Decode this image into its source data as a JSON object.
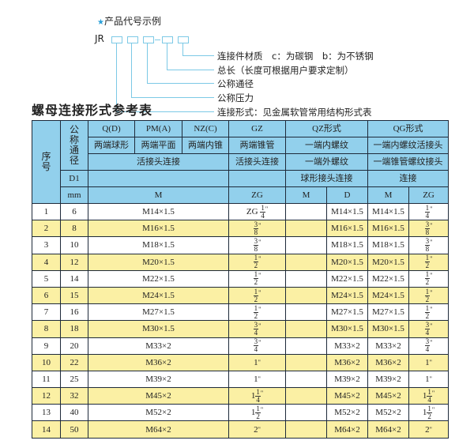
{
  "legend": {
    "star_icon": "star",
    "heading": "产品代号示例",
    "code_prefix": "JR",
    "dash": "-",
    "labels": [
      "连接件材质　c：为碳钢　b：为不锈钢",
      "总长（长度可根据用户要求定制）",
      "公称通径",
      "公称压力",
      "连接形式：见金属软管常用结构形式表"
    ]
  },
  "title": "螺母连接形式参考表",
  "colors": {
    "header": "#92d0ec",
    "stripe": "#fbf0a4",
    "line": "#7cc9e6",
    "star": "#2aa0d8"
  },
  "header": {
    "seq": "序号",
    "dn": "公称通径",
    "qd": "Q(D)",
    "pm": "PM(A)",
    "nz": "NZ(C)",
    "gz": "GZ",
    "qz": "QZ形式",
    "qg": "QG形式",
    "qd2": "两端球形",
    "pm2": "两端平面",
    "nz2": "两端内锥",
    "gz2": "两端锥管",
    "qz2": "一端内螺纹",
    "qg2": "一端内螺纹活接头",
    "hjt": "活接头连接",
    "gz3": "活接头连接",
    "qz3": "一端外螺纹",
    "qg3": "一端锥管螺纹接头",
    "d1": "D1",
    "qz4": "球形接头连接",
    "qg4": "连接",
    "mm": "mm",
    "m": "M",
    "zg": "ZG",
    "qzm": "M",
    "qzd": "D",
    "qgm": "M",
    "qgzg": "ZG"
  },
  "rows": [
    {
      "no": "1",
      "dn": "6",
      "m": "M14×1.5",
      "zg": {
        "pre": "ZG",
        "w": "",
        "n": "1",
        "d": "4"
      },
      "qzd": "M14×1.5",
      "qgm": "M14×1.5",
      "qgzg": {
        "w": "",
        "n": "1",
        "d": "4"
      }
    },
    {
      "no": "2",
      "dn": "8",
      "m": "M16×1.5",
      "zg": {
        "w": "",
        "n": "3",
        "d": "8"
      },
      "qzd": "M16×1.5",
      "qgm": "M16×1.5",
      "qgzg": {
        "w": "",
        "n": "3",
        "d": "8"
      }
    },
    {
      "no": "3",
      "dn": "10",
      "m": "M18×1.5",
      "zg": {
        "w": "",
        "n": "3",
        "d": "8"
      },
      "qzd": "M18×1.5",
      "qgm": "M18×1.5",
      "qgzg": {
        "w": "",
        "n": "3",
        "d": "8"
      }
    },
    {
      "no": "4",
      "dn": "12",
      "m": "M20×1.5",
      "zg": {
        "w": "",
        "n": "1",
        "d": "2"
      },
      "qzd": "M20×1.5",
      "qgm": "M20×1.5",
      "qgzg": {
        "w": "",
        "n": "1",
        "d": "2"
      }
    },
    {
      "no": "5",
      "dn": "14",
      "m": "M22×1.5",
      "zg": {
        "w": "",
        "n": "1",
        "d": "2"
      },
      "qzd": "M22×1.5",
      "qgm": "M22×1.5",
      "qgzg": {
        "w": "",
        "n": "1",
        "d": "2"
      }
    },
    {
      "no": "6",
      "dn": "15",
      "m": "M24×1.5",
      "zg": {
        "w": "",
        "n": "1",
        "d": "2"
      },
      "qzd": "M24×1.5",
      "qgm": "M24×1.5",
      "qgzg": {
        "w": "",
        "n": "1",
        "d": "2"
      }
    },
    {
      "no": "7",
      "dn": "16",
      "m": "M27×1.5",
      "zg": {
        "w": "",
        "n": "1",
        "d": "2"
      },
      "qzd": "M27×1.5",
      "qgm": "M27×1.5",
      "qgzg": {
        "w": "",
        "n": "1",
        "d": "2"
      }
    },
    {
      "no": "8",
      "dn": "18",
      "m": "M30×1.5",
      "zg": {
        "w": "",
        "n": "3",
        "d": "4"
      },
      "qzd": "M30×1.5",
      "qgm": "M30×1.5",
      "qgzg": {
        "w": "",
        "n": "3",
        "d": "4"
      }
    },
    {
      "no": "9",
      "dn": "20",
      "m": "M33×2",
      "zg": {
        "w": "",
        "n": "3",
        "d": "4"
      },
      "qzd": "M33×2",
      "qgm": "M33×2",
      "qgzg": {
        "w": "",
        "n": "3",
        "d": "4"
      }
    },
    {
      "no": "10",
      "dn": "22",
      "m": "M36×2",
      "zg": {
        "w": "1"
      },
      "qzd": "M36×2",
      "qgm": "M36×2",
      "qgzg": {
        "w": "1"
      }
    },
    {
      "no": "11",
      "dn": "25",
      "m": "M39×2",
      "zg": {
        "w": "1"
      },
      "qzd": "M39×2",
      "qgm": "M39×2",
      "qgzg": {
        "w": "1"
      }
    },
    {
      "no": "12",
      "dn": "32",
      "m": "M45×2",
      "zg": {
        "w": "1",
        "n": "1",
        "d": "4"
      },
      "qzd": "M45×2",
      "qgm": "M45×2",
      "qgzg": {
        "w": "1",
        "n": "1",
        "d": "4"
      }
    },
    {
      "no": "13",
      "dn": "40",
      "m": "M52×2",
      "zg": {
        "w": "1",
        "n": "1",
        "d": "2"
      },
      "qzd": "M52×2",
      "qgm": "M52×2",
      "qgzg": {
        "w": "1",
        "n": "1",
        "d": "2"
      }
    },
    {
      "no": "14",
      "dn": "50",
      "m": "M64×2",
      "zg": {
        "w": "2"
      },
      "qzd": "M64×2",
      "qgm": "M64×2",
      "qgzg": {
        "w": "2"
      }
    }
  ],
  "inch_mark": "\""
}
